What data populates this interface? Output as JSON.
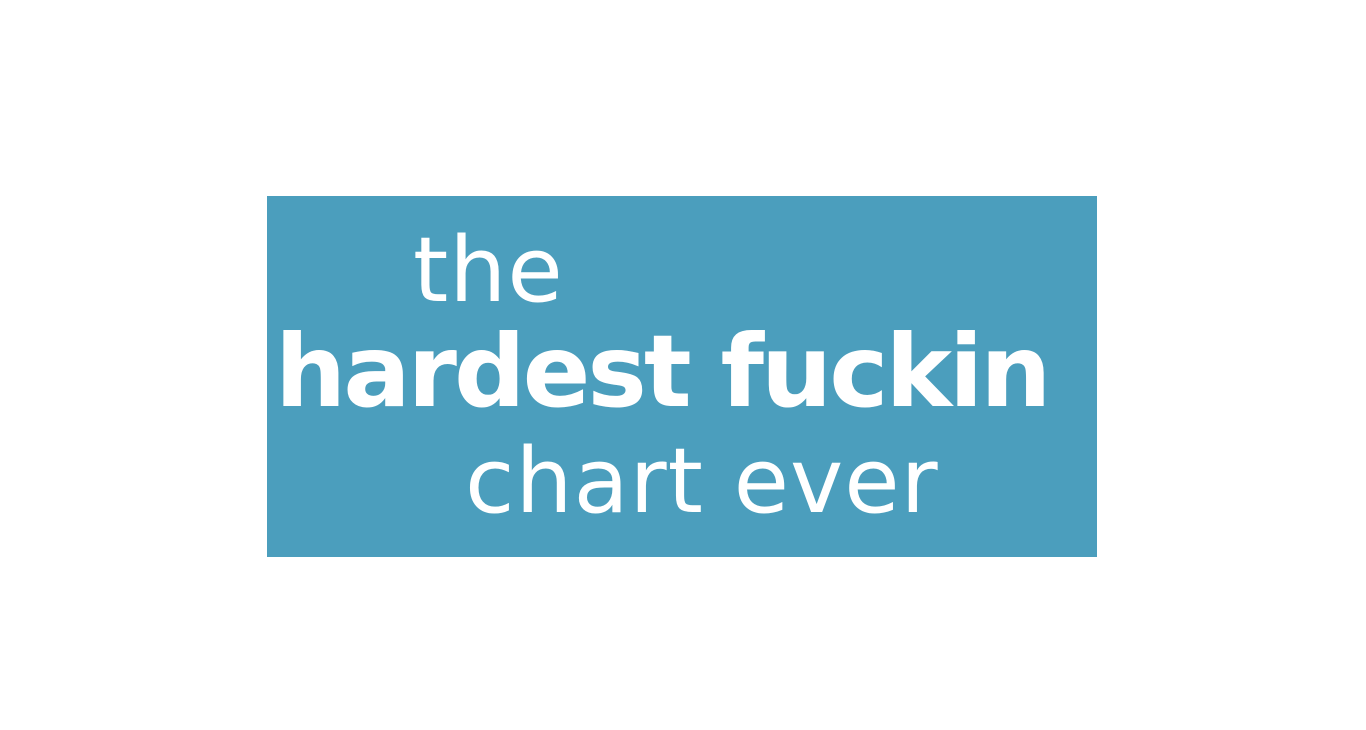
{
  "banner": {
    "line1": "the",
    "line2": "hardest fuckin",
    "line3": "chart ever"
  },
  "colors": {
    "background": "#ffffff",
    "banner": "#4b9ebd",
    "text": "#ffffff"
  }
}
